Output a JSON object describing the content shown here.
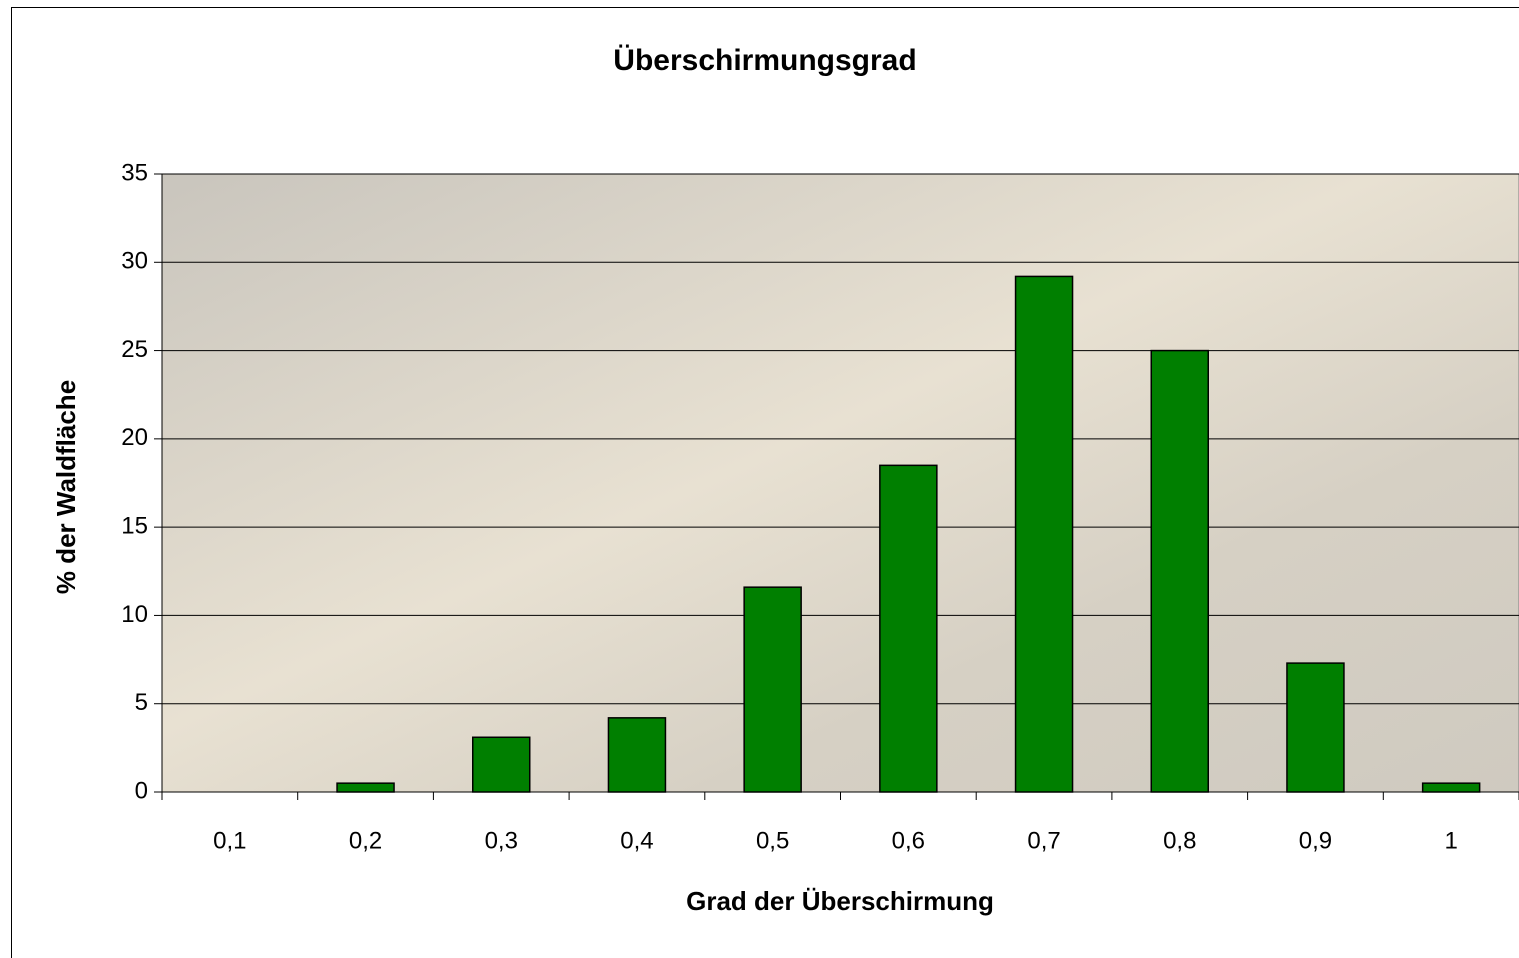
{
  "chart_data": {
    "type": "bar",
    "title": "Überschirmungsgrad",
    "x_label": "Grad der Überschirmung",
    "y_label": "% der Waldfläche",
    "categories": [
      "0,1",
      "0,2",
      "0,3",
      "0,4",
      "0,5",
      "0,6",
      "0,7",
      "0,8",
      "0,9",
      "1"
    ],
    "values": [
      0,
      0.5,
      3.1,
      4.2,
      11.6,
      18.5,
      29.2,
      25,
      7.3,
      0.5
    ],
    "color": "#007f00",
    "ylim": [
      0,
      35
    ],
    "yticks": [
      0,
      5,
      10,
      15,
      20,
      25,
      30,
      35
    ],
    "grid": true
  }
}
